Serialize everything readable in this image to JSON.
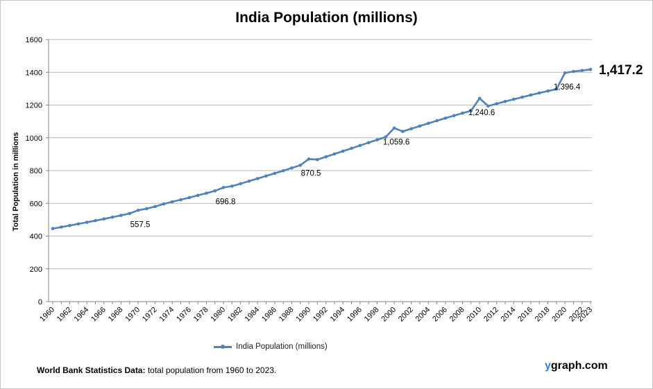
{
  "chart_data": {
    "type": "line",
    "title": "India Population (millions)",
    "xlabel": "",
    "ylabel": "Total Population  in millions",
    "ylim": [
      0,
      1600
    ],
    "yticks": [
      0,
      200,
      400,
      600,
      800,
      1000,
      1200,
      1400,
      1600
    ],
    "grid": true,
    "legend_position": "bottom",
    "series": [
      {
        "name": "India Population (millions)",
        "color": "#4f81bd",
        "x": [
          1960,
          1961,
          1962,
          1963,
          1964,
          1965,
          1966,
          1967,
          1968,
          1969,
          1970,
          1971,
          1972,
          1973,
          1974,
          1975,
          1976,
          1977,
          1978,
          1979,
          1980,
          1981,
          1982,
          1983,
          1984,
          1985,
          1986,
          1987,
          1988,
          1989,
          1990,
          1991,
          1992,
          1993,
          1994,
          1995,
          1996,
          1997,
          1998,
          1999,
          2000,
          2001,
          2002,
          2003,
          2004,
          2005,
          2006,
          2007,
          2008,
          2009,
          2010,
          2011,
          2012,
          2013,
          2014,
          2015,
          2016,
          2017,
          2018,
          2019,
          2020,
          2021,
          2022,
          2023
        ],
        "values": [
          445.9,
          455.2,
          464.7,
          474.4,
          484.3,
          494.5,
          505.0,
          515.7,
          526.6,
          537.9,
          557.5,
          567.5,
          580.5,
          596.3,
          609.4,
          622.1,
          635.0,
          648.3,
          662.0,
          676.0,
          696.8,
          704.9,
          720.0,
          735.5,
          751.2,
          767.0,
          783.0,
          799.2,
          815.7,
          832.5,
          870.5,
          866.9,
          884.2,
          901.5,
          918.7,
          936.0,
          953.4,
          970.6,
          987.9,
          1005.0,
          1059.6,
          1038.8,
          1055.5,
          1072.0,
          1088.3,
          1104.3,
          1120.1,
          1135.6,
          1150.6,
          1165.2,
          1240.6,
          1194.0,
          1208.0,
          1221.9,
          1235.3,
          1248.4,
          1261.2,
          1273.6,
          1285.6,
          1297.1,
          1396.4,
          1405.0,
          1411.0,
          1417.2
        ]
      }
    ],
    "data_labels": [
      {
        "year": 1970,
        "text": "557.5"
      },
      {
        "year": 1980,
        "text": "696.8"
      },
      {
        "year": 1990,
        "text": "870.5"
      },
      {
        "year": 2000,
        "text": "1,059.6"
      },
      {
        "year": 2010,
        "text": "1,240.6"
      },
      {
        "year": 2020,
        "text": "1,396.4"
      },
      {
        "year": 2023,
        "text": "1,417.2"
      }
    ]
  },
  "footer": {
    "source_bold": "World Bank Statistics Data:",
    "source_text": " total population from 1960 to 2023."
  },
  "brand": {
    "first_letter": "y",
    "rest": "graph.com"
  }
}
